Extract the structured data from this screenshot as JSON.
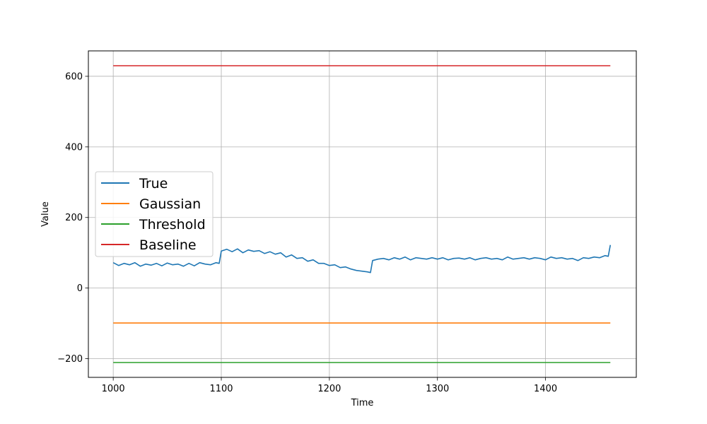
{
  "chart_data": {
    "type": "line",
    "title": "",
    "xlabel": "Time",
    "ylabel": "Value",
    "xlim": [
      977,
      1484
    ],
    "ylim": [
      -253,
      672
    ],
    "xticks": [
      1000,
      1100,
      1200,
      1300,
      1400
    ],
    "yticks": [
      -200,
      0,
      200,
      400,
      600
    ],
    "grid": true,
    "legend_position": "center-left",
    "series": [
      {
        "name": "True",
        "color": "#1f77b4",
        "x": [
          1000,
          1005,
          1010,
          1015,
          1020,
          1025,
          1030,
          1035,
          1040,
          1045,
          1050,
          1055,
          1060,
          1065,
          1070,
          1075,
          1080,
          1085,
          1090,
          1095,
          1098,
          1100,
          1105,
          1110,
          1115,
          1120,
          1125,
          1130,
          1135,
          1140,
          1145,
          1150,
          1155,
          1160,
          1165,
          1170,
          1175,
          1180,
          1185,
          1190,
          1195,
          1200,
          1205,
          1210,
          1215,
          1220,
          1225,
          1230,
          1235,
          1238,
          1240,
          1245,
          1250,
          1255,
          1260,
          1265,
          1270,
          1275,
          1280,
          1285,
          1290,
          1295,
          1300,
          1305,
          1310,
          1315,
          1320,
          1325,
          1330,
          1335,
          1340,
          1345,
          1350,
          1355,
          1360,
          1365,
          1370,
          1375,
          1380,
          1385,
          1390,
          1395,
          1400,
          1405,
          1410,
          1415,
          1420,
          1425,
          1430,
          1435,
          1440,
          1445,
          1450,
          1455,
          1458,
          1460
        ],
        "y": [
          72,
          64,
          70,
          66,
          72,
          62,
          68,
          65,
          70,
          63,
          71,
          66,
          68,
          62,
          70,
          63,
          72,
          68,
          66,
          72,
          70,
          105,
          110,
          103,
          111,
          100,
          108,
          104,
          106,
          98,
          103,
          96,
          100,
          88,
          94,
          84,
          86,
          76,
          80,
          70,
          70,
          64,
          66,
          58,
          60,
          54,
          50,
          48,
          46,
          44,
          78,
          82,
          84,
          80,
          86,
          82,
          88,
          80,
          86,
          84,
          82,
          86,
          82,
          86,
          80,
          84,
          85,
          82,
          86,
          80,
          84,
          86,
          82,
          84,
          80,
          88,
          82,
          84,
          86,
          82,
          86,
          84,
          80,
          88,
          84,
          86,
          82,
          84,
          78,
          86,
          84,
          88,
          86,
          92,
          90,
          122
        ]
      },
      {
        "name": "Gaussian",
        "color": "#ff7f0e",
        "x": [
          1000,
          1460
        ],
        "y": [
          -99,
          -99
        ]
      },
      {
        "name": "Threshold",
        "color": "#2ca02c",
        "x": [
          1000,
          1460
        ],
        "y": [
          -211,
          -211
        ]
      },
      {
        "name": "Baseline",
        "color": "#d62728",
        "x": [
          1000,
          1460
        ],
        "y": [
          630,
          630
        ]
      }
    ]
  }
}
